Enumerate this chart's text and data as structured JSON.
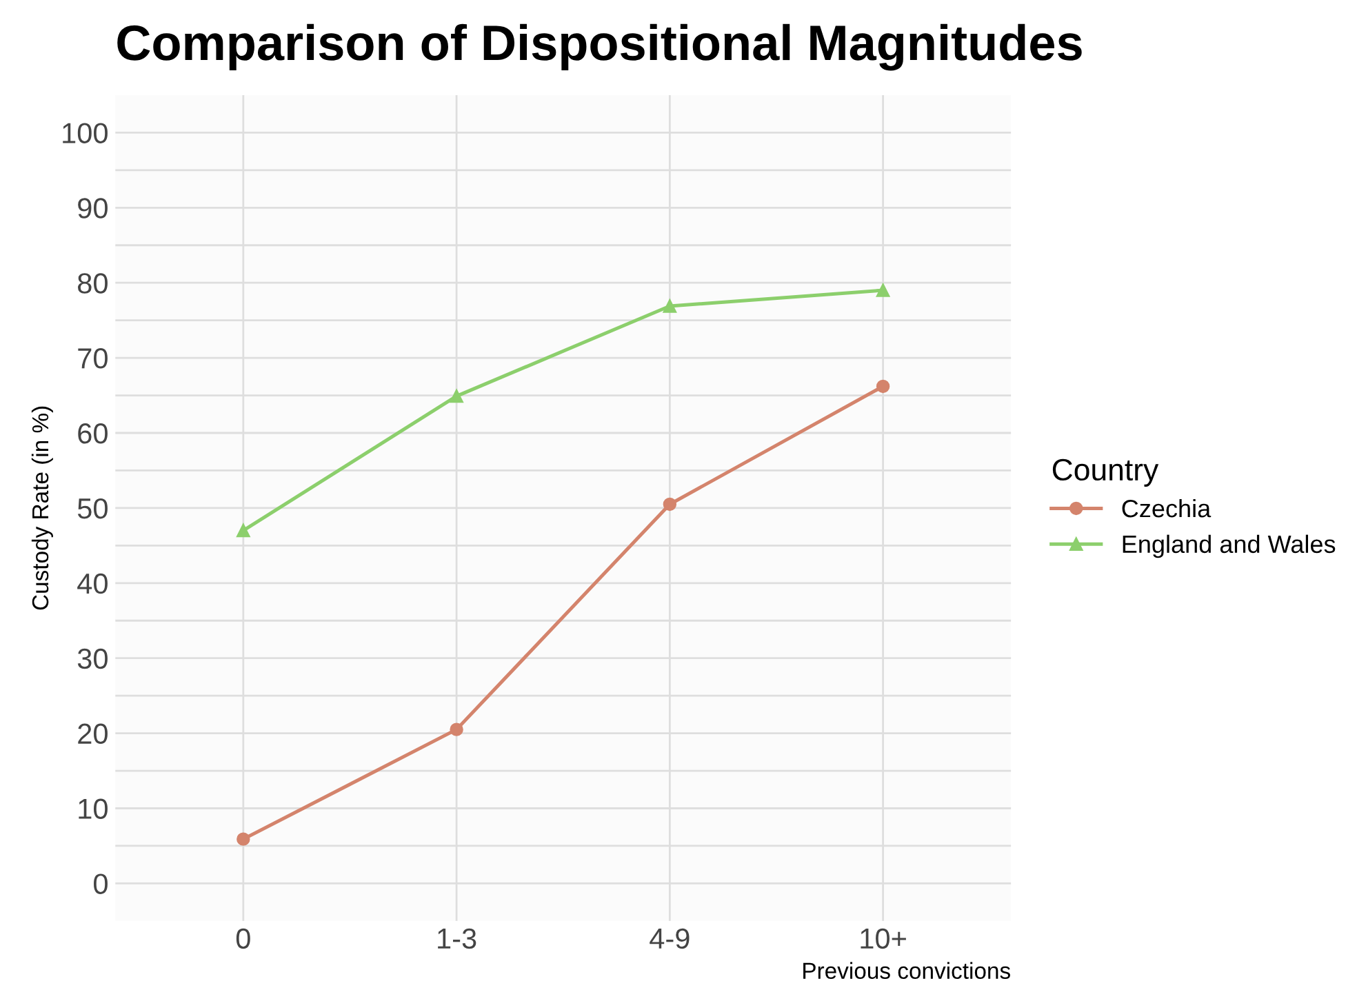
{
  "chart_data": {
    "type": "line",
    "title": "Comparison of Dispositional Magnitudes",
    "xlabel": "Previous convictions",
    "ylabel": "Custody Rate (in %)",
    "legend_title": "Country",
    "categories": [
      "0",
      "1-3",
      "4-9",
      "10+"
    ],
    "series": [
      {
        "name": "Czechia",
        "color": "#d4846c",
        "marker": "circle",
        "values": [
          5.9,
          20.5,
          50.5,
          66.2
        ]
      },
      {
        "name": "England and Wales",
        "color": "#8ccf6c",
        "marker": "triangle",
        "values": [
          47.0,
          64.9,
          76.9,
          79.0
        ]
      }
    ],
    "ylim": [
      -5,
      105
    ],
    "yticks": [
      0,
      {
        "value": 5,
        "label": null
      },
      10,
      {
        "value": 15,
        "label": null
      },
      20,
      {
        "value": 25,
        "label": null
      },
      30,
      {
        "value": 35,
        "label": null
      },
      40,
      {
        "value": 45,
        "label": null
      },
      50,
      {
        "value": 55,
        "label": null
      },
      60,
      {
        "value": 65,
        "label": null
      },
      70,
      {
        "value": 75,
        "label": null
      },
      80,
      {
        "value": 85,
        "label": null
      },
      90,
      {
        "value": 95,
        "label": null
      },
      100
    ],
    "grid": true,
    "legend": "right",
    "line_style": "solid"
  }
}
